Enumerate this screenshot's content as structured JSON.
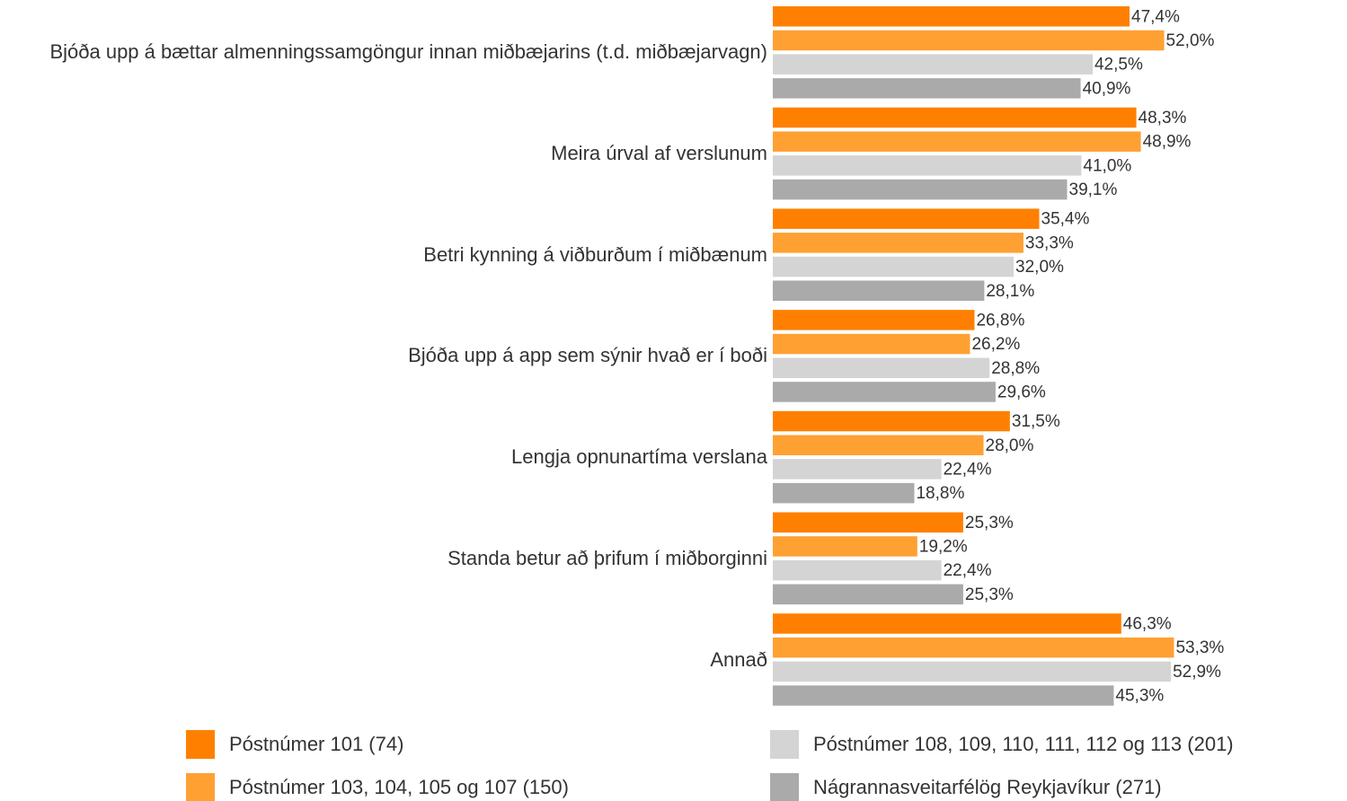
{
  "chart_data": {
    "type": "bar",
    "orientation": "horizontal",
    "categories": [
      "Bjóða upp á bættar almenningssamgöngur innan miðbæjarins (t.d. miðbæjarvagn)",
      "Meira úrval af verslunum",
      "Betri kynning á viðburðum í miðbænum",
      "Bjóða upp á app sem sýnir hvað er í boði",
      "Lengja opnunartíma verslana",
      "Standa betur að þrifum í miðborginni",
      "Annað"
    ],
    "xlim": [
      0,
      100
    ],
    "series": [
      {
        "name": "Póstnúmer 101 (74)",
        "color": "#ff8000",
        "values": [
          47.4,
          48.3,
          35.4,
          26.8,
          31.5,
          25.3,
          46.3
        ],
        "value_labels": [
          "47,4%",
          "48,3%",
          "35,4%",
          "26,8%",
          "31,5%",
          "25,3%",
          "46,3%"
        ]
      },
      {
        "name": "Póstnúmer 103, 104, 105 og 107 (150)",
        "color": "#ffa033",
        "values": [
          52.0,
          48.9,
          33.3,
          26.2,
          28.0,
          19.2,
          53.3
        ],
        "value_labels": [
          "52,0%",
          "48,9%",
          "33,3%",
          "26,2%",
          "28,0%",
          "19,2%",
          "53,3%"
        ]
      },
      {
        "name": "Póstnúmer 108, 109, 110, 111, 112 og 113 (201)",
        "color": "#d4d4d4",
        "values": [
          42.5,
          41.0,
          32.0,
          28.8,
          22.4,
          22.4,
          52.9
        ],
        "value_labels": [
          "42,5%",
          "41,0%",
          "32,0%",
          "28,8%",
          "22,4%",
          "22,4%",
          "52,9%"
        ]
      },
      {
        "name": "Nágrannasveitarfélög Reykjavíkur (271)",
        "color": "#aaaaaa",
        "values": [
          40.9,
          39.1,
          28.1,
          29.6,
          18.8,
          25.3,
          45.3
        ],
        "value_labels": [
          "40,9%",
          "39,1%",
          "28,1%",
          "29,6%",
          "18,8%",
          "25,3%",
          "45,3%"
        ]
      }
    ],
    "legend": "bottom"
  }
}
